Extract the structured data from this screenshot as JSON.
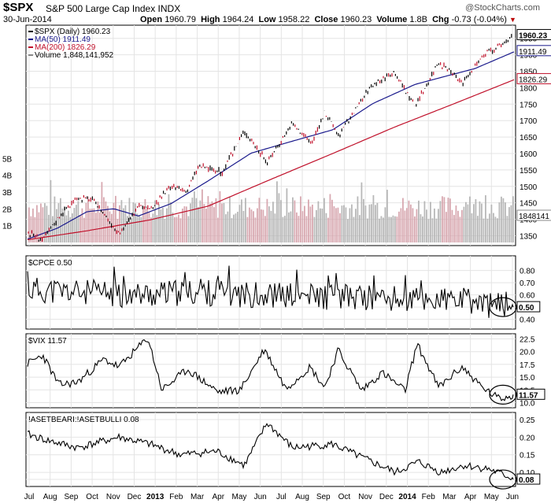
{
  "header": {
    "symbol": "$SPX",
    "name": "S&P 500 Large Cap Index INDX",
    "date": "30-Jun-2014",
    "watermark": "@StockCharts.com",
    "open_label": "Open",
    "open": "1960.79",
    "high_label": "High",
    "high": "1964.24",
    "low_label": "Low",
    "low": "1958.22",
    "close_label": "Close",
    "close": "1960.23",
    "volume_label": "Volume",
    "volume": "1.8B",
    "chg_label": "Chg",
    "chg": "-0.73 (-0.04%)"
  },
  "x_axis": {
    "labels": [
      "Jul",
      "Aug",
      "Sep",
      "Oct",
      "Nov",
      "Dec",
      "2013",
      "Feb",
      "Mar",
      "Apr",
      "May",
      "Jun",
      "Jul",
      "Aug",
      "Sep",
      "Oct",
      "Nov",
      "Dec",
      "2014",
      "Feb",
      "Mar",
      "Apr",
      "May",
      "Jun"
    ],
    "bold": [
      "2013",
      "2014"
    ]
  },
  "chart_data": [
    {
      "type": "line",
      "panel": "price",
      "legend": [
        {
          "text": "$SPX (Daily) 1960.23",
          "color": "#000000"
        },
        {
          "text": "MA(50) 1911.49",
          "color": "#1a1a8c"
        },
        {
          "text": "MA(200) 1826.29",
          "color": "#c0102a"
        },
        {
          "text": "Volume 1,848,141,952",
          "color": "#888888"
        }
      ],
      "y_ticks": [
        1350,
        1400,
        1450,
        1500,
        1550,
        1600,
        1650,
        1700,
        1750,
        1800,
        1850,
        1900,
        1950
      ],
      "ylim": [
        1320,
        1990
      ],
      "volume_ticks": [
        "1B",
        "2B",
        "3B",
        "4B",
        "5B"
      ],
      "volume_scale_max_billions": 5.3,
      "series": [
        {
          "name": "$SPX (Daily)",
          "color": "#000000",
          "x": [
            "2012-06-29",
            "2012-07-25",
            "2012-08-21",
            "2012-09-14",
            "2012-10-05",
            "2012-10-26",
            "2012-11-15",
            "2012-12-18",
            "2012-12-31",
            "2013-01-31",
            "2013-02-25",
            "2013-03-14",
            "2013-04-18",
            "2013-05-21",
            "2013-06-24",
            "2013-07-31",
            "2013-08-30",
            "2013-09-18",
            "2013-10-09",
            "2013-11-27",
            "2013-12-31",
            "2014-01-31",
            "2014-03-07",
            "2014-04-11",
            "2014-05-13",
            "2014-06-30"
          ],
          "values": [
            1362,
            1338,
            1418,
            1465,
            1460,
            1412,
            1354,
            1446,
            1426,
            1498,
            1488,
            1563,
            1541,
            1669,
            1573,
            1690,
            1632,
            1725,
            1655,
            1807,
            1848,
            1743,
            1878,
            1815,
            1897,
            1960
          ]
        },
        {
          "name": "MA(50)",
          "color": "#1a1a8c",
          "x": [
            "2012-07-02",
            "2012-08-15",
            "2012-09-28",
            "2012-11-07",
            "2012-12-14",
            "2013-02-01",
            "2013-03-29",
            "2013-05-31",
            "2013-07-31",
            "2013-09-30",
            "2013-11-29",
            "2014-01-31",
            "2014-03-31",
            "2014-04-30",
            "2014-06-30"
          ],
          "values": [
            1340,
            1373,
            1423,
            1432,
            1410,
            1448,
            1518,
            1601,
            1637,
            1672,
            1752,
            1810,
            1842,
            1858,
            1911
          ]
        },
        {
          "name": "MA(200)",
          "color": "#c0102a",
          "x": [
            "2012-07-02",
            "2012-09-28",
            "2012-12-31",
            "2013-03-28",
            "2013-06-28",
            "2013-09-30",
            "2013-12-31",
            "2014-03-31",
            "2014-06-30"
          ],
          "values": [
            1338,
            1365,
            1398,
            1440,
            1520,
            1600,
            1680,
            1752,
            1826
          ]
        }
      ],
      "last_value_labels": [
        "1960.23",
        "1911.49",
        "1826.29",
        "1848141"
      ]
    },
    {
      "type": "line",
      "panel": "cpce",
      "title": "$CPCE 0.50",
      "y_ticks": [
        "0.80",
        "0.70",
        "0.60",
        "0.50",
        "0.40"
      ],
      "ylim": [
        0.32,
        0.92
      ],
      "series": [
        {
          "name": "$CPCE",
          "x": [
            "2012-07",
            "2012-09",
            "2012-12",
            "2013-03",
            "2013-06",
            "2013-10",
            "2014-01",
            "2014-04",
            "2014-06"
          ],
          "values": [
            0.64,
            0.62,
            0.6,
            0.62,
            0.6,
            0.58,
            0.56,
            0.55,
            0.5
          ]
        }
      ],
      "last_value": "0.50"
    },
    {
      "type": "line",
      "panel": "vix",
      "title": "$VIX 11.57",
      "y_ticks": [
        "22.5",
        "20.0",
        "17.5",
        "15.0",
        "12.5",
        "10.0"
      ],
      "ylim": [
        9.0,
        23.5
      ],
      "series": [
        {
          "name": "$VIX",
          "x": [
            "2012-06-29",
            "2012-07-24",
            "2012-08-17",
            "2012-09-14",
            "2012-10-23",
            "2012-11-15",
            "2012-12-28",
            "2013-01-18",
            "2013-02-25",
            "2013-04-12",
            "2013-05-15",
            "2013-06-20",
            "2013-07-22",
            "2013-08-27",
            "2013-09-18",
            "2013-10-08",
            "2013-11-12",
            "2013-12-13",
            "2014-01-16",
            "2014-02-03",
            "2014-03-07",
            "2014-04-11",
            "2014-05-12",
            "2014-06-06",
            "2014-06-30"
          ],
          "values": [
            17.5,
            19.3,
            13.5,
            14.0,
            18.5,
            17.0,
            22.7,
            12.5,
            16.5,
            12.1,
            12.5,
            20.5,
            12.8,
            17.0,
            13.0,
            20.3,
            12.4,
            15.9,
            12.3,
            21.5,
            13.0,
            17.0,
            12.9,
            10.7,
            11.57
          ]
        }
      ],
      "last_value": "11.57"
    },
    {
      "type": "line",
      "panel": "asetbear",
      "title": "!ASETBEARI:!ASETBULLI 0.08",
      "y_ticks": [
        "0.25",
        "0.20",
        "0.15",
        "0.10",
        "0.08"
      ],
      "ylim": [
        0.06,
        0.27
      ],
      "series": [
        {
          "name": "!ASETBEARI:!ASETBULLI",
          "x": [
            "2012-06-29",
            "2012-08-01",
            "2012-09-14",
            "2012-11-15",
            "2012-12-31",
            "2013-02-15",
            "2013-04-10",
            "2013-05-21",
            "2013-06-24",
            "2013-08-01",
            "2013-09-30",
            "2013-11-15",
            "2014-01-02",
            "2014-02-05",
            "2014-03-10",
            "2014-04-14",
            "2014-05-20",
            "2014-06-30"
          ],
          "values": [
            0.21,
            0.19,
            0.17,
            0.2,
            0.18,
            0.15,
            0.16,
            0.12,
            0.24,
            0.17,
            0.18,
            0.14,
            0.1,
            0.13,
            0.1,
            0.12,
            0.11,
            0.08
          ]
        }
      ],
      "last_value": "0.08"
    }
  ]
}
